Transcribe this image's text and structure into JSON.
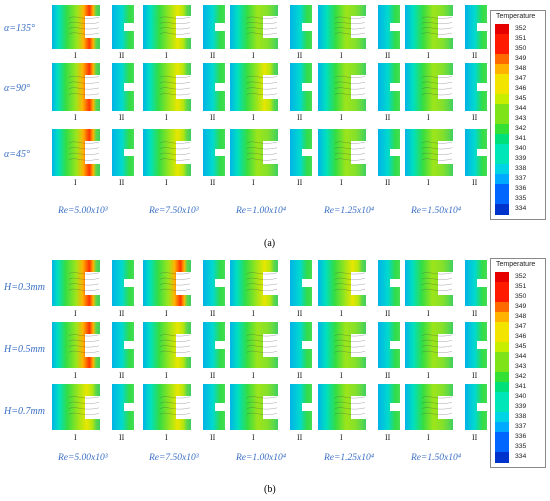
{
  "figure_a": {
    "rows": [
      "α=135°",
      "α=90°",
      "α=45°"
    ],
    "columns": [
      "Re=5.00x10³",
      "Re=7.50x10³",
      "Re=1.00x10⁴",
      "Re=1.25x10⁴",
      "Re=1.50x10⁴"
    ],
    "hot_intensity": [
      [
        0.7,
        0.45,
        0.25,
        0.15,
        0.1
      ],
      [
        1.0,
        0.6,
        0.35,
        0.2,
        0.12
      ],
      [
        0.85,
        0.5,
        0.3,
        0.18,
        0.1
      ]
    ],
    "caption": "(a)"
  },
  "figure_b": {
    "rows": [
      "H=0.3mm",
      "H=0.5mm",
      "H=0.7mm"
    ],
    "columns": [
      "Re=5.00x10³",
      "Re=7.50x10³",
      "Re=1.00x10⁴",
      "Re=1.25x10⁴",
      "Re=1.50x10⁴"
    ],
    "hot_intensity": [
      [
        1.0,
        0.7,
        0.55,
        0.4,
        0.3
      ],
      [
        0.9,
        0.5,
        0.3,
        0.2,
        0.15
      ],
      [
        0.6,
        0.35,
        0.2,
        0.12,
        0.08
      ]
    ],
    "caption": "(b)"
  },
  "panel_labels": {
    "left": "I",
    "right": "II"
  },
  "legend": {
    "title": "Temperature",
    "ticks": [
      "352",
      "351",
      "350",
      "349",
      "348",
      "347",
      "346",
      "345",
      "344",
      "343",
      "342",
      "341",
      "340",
      "339",
      "338",
      "337",
      "336",
      "335",
      "334"
    ]
  }
}
